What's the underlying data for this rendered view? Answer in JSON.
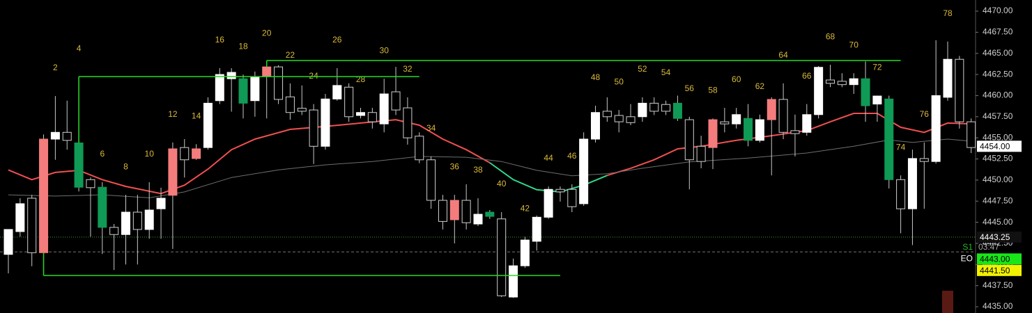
{
  "chart_data": {
    "type": "candlestick",
    "categories": [
      null,
      null,
      null,
      null,
      2,
      null,
      4,
      null,
      6,
      null,
      8,
      null,
      10,
      null,
      12,
      null,
      14,
      null,
      16,
      null,
      18,
      null,
      20,
      null,
      22,
      null,
      24,
      null,
      26,
      null,
      28,
      null,
      30,
      null,
      32,
      null,
      34,
      null,
      36,
      null,
      38,
      null,
      40,
      null,
      42,
      null,
      44,
      null,
      46,
      null,
      48,
      null,
      50,
      null,
      52,
      null,
      54,
      null,
      56,
      null,
      58,
      null,
      60,
      null,
      62,
      null,
      64,
      null,
      66,
      null,
      68,
      null,
      70,
      null,
      72,
      null,
      74,
      null,
      76,
      null,
      78,
      null,
      null
    ],
    "open": [
      4441.2,
      4443.9,
      4447.85,
      4441.4,
      4454.85,
      4455.65,
      4454.4,
      4450.05,
      4449.15,
      4444.4,
      4443.55,
      4446.2,
      4444.15,
      4446.6,
      4448.2,
      4453.85,
      4452.55,
      4453.85,
      4459.4,
      4462.0,
      4462.0,
      4459.4,
      4462.25,
      4463.4,
      4459.85,
      4458.5,
      4458.3,
      4454.0,
      4459.6,
      4461.0,
      4457.65,
      4458.0,
      4456.65,
      4460.45,
      4458.55,
      4455.2,
      4452.4,
      4447.6,
      4445.3,
      4447.6,
      4444.8,
      4446.2,
      4445.4,
      4436.15,
      4439.85,
      4442.75,
      4445.6,
      4448.9,
      4448.9,
      4447.2,
      4454.85,
      4458.15,
      4457.65,
      4457.5,
      4457.5,
      4459.1,
      4458.95,
      4459.1,
      4457.15,
      4454.0,
      4453.85,
      4456.9,
      4456.65,
      4457.3,
      4454.7,
      4457.15,
      4459.55,
      4455.85,
      4455.65,
      4457.75,
      4461.85,
      4461.7,
      4461.3,
      4462.0,
      4459.0,
      4459.6,
      4450.05,
      4446.6,
      4452.55,
      4452.2,
      4459.8,
      4464.3,
      4456.9
    ],
    "high": [
      4444.15,
      4447.85,
      4448.25,
      4455.4,
      4459.95,
      4459.4,
      4462.25,
      4450.3,
      4449.75,
      4444.8,
      4448.25,
      4448.25,
      4449.75,
      4449.1,
      4454.45,
      4454.85,
      4454.25,
      4459.8,
      4463.25,
      4463.25,
      4462.5,
      4462.85,
      4464.05,
      4463.6,
      4461.45,
      4461.2,
      4459.0,
      4460.2,
      4463.25,
      4461.45,
      4458.55,
      4458.55,
      4462.0,
      4463.4,
      4459.8,
      4455.65,
      4452.8,
      4448.25,
      4448.25,
      4449.5,
      4447.85,
      4446.45,
      4446.2,
      4440.7,
      4443.3,
      4445.8,
      4449.25,
      4449.25,
      4449.5,
      4455.65,
      4458.8,
      4459.8,
      4458.3,
      4459.0,
      4459.8,
      4459.8,
      4459.4,
      4460.0,
      4457.5,
      4455.25,
      4457.3,
      4458.55,
      4458.55,
      4459.0,
      4457.75,
      4459.8,
      4461.45,
      4457.75,
      4459.0,
      4463.5,
      4463.65,
      4462.65,
      4462.65,
      4464.05,
      4460.0,
      4460.0,
      4450.55,
      4453.6,
      4454.45,
      4466.55,
      4466.4,
      4464.7,
      4457.3
    ],
    "low": [
      4438.95,
      4443.3,
      4439.8,
      4438.8,
      4452.4,
      4453.6,
      4448.65,
      4443.3,
      4441.25,
      4439.35,
      4440.0,
      4440.0,
      4443.05,
      4443.05,
      4441.85,
      4450.3,
      4452.4,
      4453.6,
      4459.0,
      4458.1,
      4457.3,
      4457.5,
      4457.3,
      4459.0,
      4457.15,
      4457.7,
      4451.9,
      4453.6,
      4459.4,
      4456.9,
      4457.3,
      4456.1,
      4455.65,
      4457.7,
      4454.2,
      4452.0,
      4446.6,
      4444.15,
      4442.5,
      4444.15,
      4444.55,
      4445.4,
      4436.15,
      4436.05,
      4439.6,
      4441.65,
      4445.4,
      4447.45,
      4446.2,
      4446.95,
      4454.45,
      4456.9,
      4455.65,
      4456.5,
      4456.9,
      4457.7,
      4457.7,
      4457.0,
      4448.9,
      4451.4,
      4451.3,
      4455.65,
      4456.1,
      4454.0,
      4454.45,
      4450.55,
      4454.85,
      4452.8,
      4455.25,
      4457.3,
      4461.0,
      4461.0,
      4460.2,
      4456.9,
      4456.9,
      4449.0,
      4443.7,
      4442.3,
      4446.6,
      4451.95,
      4459.4,
      4456.1,
      4453.2
    ],
    "close": [
      4444.15,
      4447.2,
      4441.4,
      4454.85,
      4455.65,
      4454.7,
      4449.15,
      4449.1,
      4444.4,
      4443.55,
      4446.2,
      4444.15,
      4446.45,
      4447.85,
      4453.7,
      4452.4,
      4453.7,
      4459.1,
      4462.5,
      4462.75,
      4459.1,
      4462.25,
      4463.4,
      4459.55,
      4458.0,
      4458.15,
      4454.0,
      4459.6,
      4461.2,
      4457.5,
      4458.0,
      4456.9,
      4460.2,
      4458.3,
      4455.0,
      4452.4,
      4447.6,
      4445.1,
      4447.6,
      4444.95,
      4445.95,
      4445.7,
      4436.3,
      4439.85,
      4442.9,
      4445.6,
      4448.9,
      4448.6,
      4446.85,
      4454.85,
      4458.0,
      4457.5,
      4456.9,
      4456.8,
      4459.1,
      4458.15,
      4458.15,
      4457.3,
      4452.4,
      4452.2,
      4457.15,
      4456.65,
      4457.75,
      4454.7,
      4457.15,
      4459.55,
      4455.65,
      4455.5,
      4457.75,
      4463.35,
      4461.45,
      4461.3,
      4462.0,
      4458.8,
      4459.95,
      4450.05,
      4446.6,
      4452.55,
      4452.2,
      4460.0,
      4464.3,
      4456.9,
      4453.85
    ],
    "body_colors": [
      "#ffffff",
      "#ffffff",
      "#000000",
      "#f47c7c",
      "#ffffff",
      "#000000",
      "#0f9a55",
      "#000000",
      "#0f9a55",
      "#000000",
      "#ffffff",
      "#000000",
      "#ffffff",
      "#ffffff",
      "#f47c7c",
      "#000000",
      "#f47c7c",
      "#ffffff",
      "#ffffff",
      "#ffffff",
      "#0f9a55",
      "#ffffff",
      "#f47c7c",
      "#000000",
      "#000000",
      "#000000",
      "#000000",
      "#ffffff",
      "#ffffff",
      "#000000",
      "#ffffff",
      "#000000",
      "#ffffff",
      "#000000",
      "#000000",
      "#000000",
      "#000000",
      "#000000",
      "#f47c7c",
      "#000000",
      "#ffffff",
      "#0f9a55",
      "#000000",
      "#ffffff",
      "#ffffff",
      "#ffffff",
      "#ffffff",
      "#000000",
      "#000000",
      "#ffffff",
      "#ffffff",
      "#000000",
      "#000000",
      "#000000",
      "#ffffff",
      "#000000",
      "#000000",
      "#0f9a55",
      "#000000",
      "#000000",
      "#f47c7c",
      "#000000",
      "#ffffff",
      "#0f9a55",
      "#ffffff",
      "#f47c7c",
      "#000000",
      "#000000",
      "#ffffff",
      "#ffffff",
      "#000000",
      "#000000",
      "#ffffff",
      "#0f9a55",
      "#ffffff",
      "#0f9a55",
      "#000000",
      "#ffffff",
      "#000000",
      "#ffffff",
      "#ffffff",
      "#000000",
      "#000000"
    ],
    "wick_color": "#c8c8c8",
    "label_color": "#d9b93a",
    "ylim": [
      4434.26,
      4471.32
    ],
    "yticks": [
      {
        "value": 4435,
        "label": "4435.00"
      },
      {
        "value": 4437.5,
        "label": "4437.50"
      },
      {
        "value": 4440,
        "label": "4440.00"
      },
      {
        "value": 4442.5,
        "label": "4442.50"
      },
      {
        "value": 4445,
        "label": "4445.00"
      },
      {
        "value": 4447.5,
        "label": "4447.50"
      },
      {
        "value": 4450,
        "label": "4450.00"
      },
      {
        "value": 4452.5,
        "label": "4452.50"
      },
      {
        "value": 4455,
        "label": "4455.00"
      },
      {
        "value": 4457.5,
        "label": "4457.50"
      },
      {
        "value": 4460,
        "label": "4460.00"
      },
      {
        "value": 4462.5,
        "label": "4462.50"
      },
      {
        "value": 4465,
        "label": "4465.00"
      },
      {
        "value": 4467.5,
        "label": "4467.50"
      },
      {
        "value": 4470,
        "label": "4470.00"
      }
    ],
    "lines": [
      {
        "color": "#f05050",
        "x": [
          0,
          2,
          4,
          6,
          8,
          10,
          13,
          15,
          17,
          19,
          21,
          24,
          27,
          30,
          33,
          35,
          37,
          39,
          41
        ],
        "values": [
          4451.2,
          4450.05,
          4450.9,
          4451.15,
          4450.05,
          4449.25,
          4448.4,
          4449.4,
          4451.3,
          4453.6,
          4454.85,
          4456.0,
          4456.35,
          4456.75,
          4457.15,
          4456.5,
          4454.85,
          4453.6,
          4452.05
        ]
      },
      {
        "color": "#2fd98a",
        "x": [
          41,
          43,
          45,
          47,
          49,
          51
        ],
        "values": [
          4452.05,
          4450.05,
          4448.85,
          4448.6,
          4449.4,
          4450.55
        ]
      },
      {
        "color": "#f05050",
        "x": [
          51,
          53,
          55,
          57,
          59,
          62,
          65,
          68,
          70,
          72,
          74,
          76,
          78,
          80,
          82
        ],
        "values": [
          4450.55,
          4451.4,
          4452.4,
          4453.7,
          4454.0,
          4454.7,
          4455.25,
          4455.85,
          4456.9,
          4457.9,
          4457.9,
          4456.25,
          4455.65,
          4456.75,
          4456.65
        ]
      },
      {
        "color": "#6e6e6e",
        "x": [
          0,
          4,
          8,
          12,
          15,
          19,
          23,
          27,
          31,
          35,
          39,
          42,
          45,
          48,
          51,
          54,
          58,
          63,
          68,
          72,
          75,
          77,
          80,
          82
        ],
        "values": [
          4448.25,
          4448.1,
          4448.25,
          4447.9,
          4448.6,
          4450.3,
          4451.2,
          4451.8,
          4452.2,
          4452.8,
          4452.7,
          4452.2,
          4451.15,
          4450.5,
          4450.75,
          4451.4,
          4452.15,
          4452.6,
          4453.2,
          4454.0,
          4454.75,
          4454.45,
          4454.85,
          4454.6
        ]
      }
    ],
    "levels": [
      {
        "value": 4462.25,
        "from": 6,
        "to": 35,
        "color": "#22dd22"
      },
      {
        "value": 4464.15,
        "from": 22,
        "to": 76,
        "color": "#22dd22"
      },
      {
        "value": 4438.7,
        "from": 3,
        "to": 47,
        "color": "#22dd22"
      }
    ],
    "hlines": [
      {
        "value": 4443.25,
        "color": "#3aa03a",
        "dash": "1,2"
      },
      {
        "value": 4441.5,
        "color": "#777777",
        "dash": "4,3"
      }
    ],
    "markers": [
      {
        "value": 4454,
        "label": "4454.00",
        "bg": "#ffffff",
        "fg": "#000000"
      },
      {
        "value": 4443.25,
        "label": "4443.25",
        "bg": "#111111",
        "fg": "#ffffff",
        "timer": "03:47",
        "tag": "S1",
        "tag_color": "#22bb22"
      },
      {
        "value": 4443,
        "label": "4443.00",
        "bg": "#19e619",
        "fg": "#000000",
        "tag": "EO",
        "tag_color": "#ffffff"
      },
      {
        "value": 4441.5,
        "label": "4441.50",
        "bg": "#f2f200",
        "fg": "#000000"
      }
    ]
  }
}
